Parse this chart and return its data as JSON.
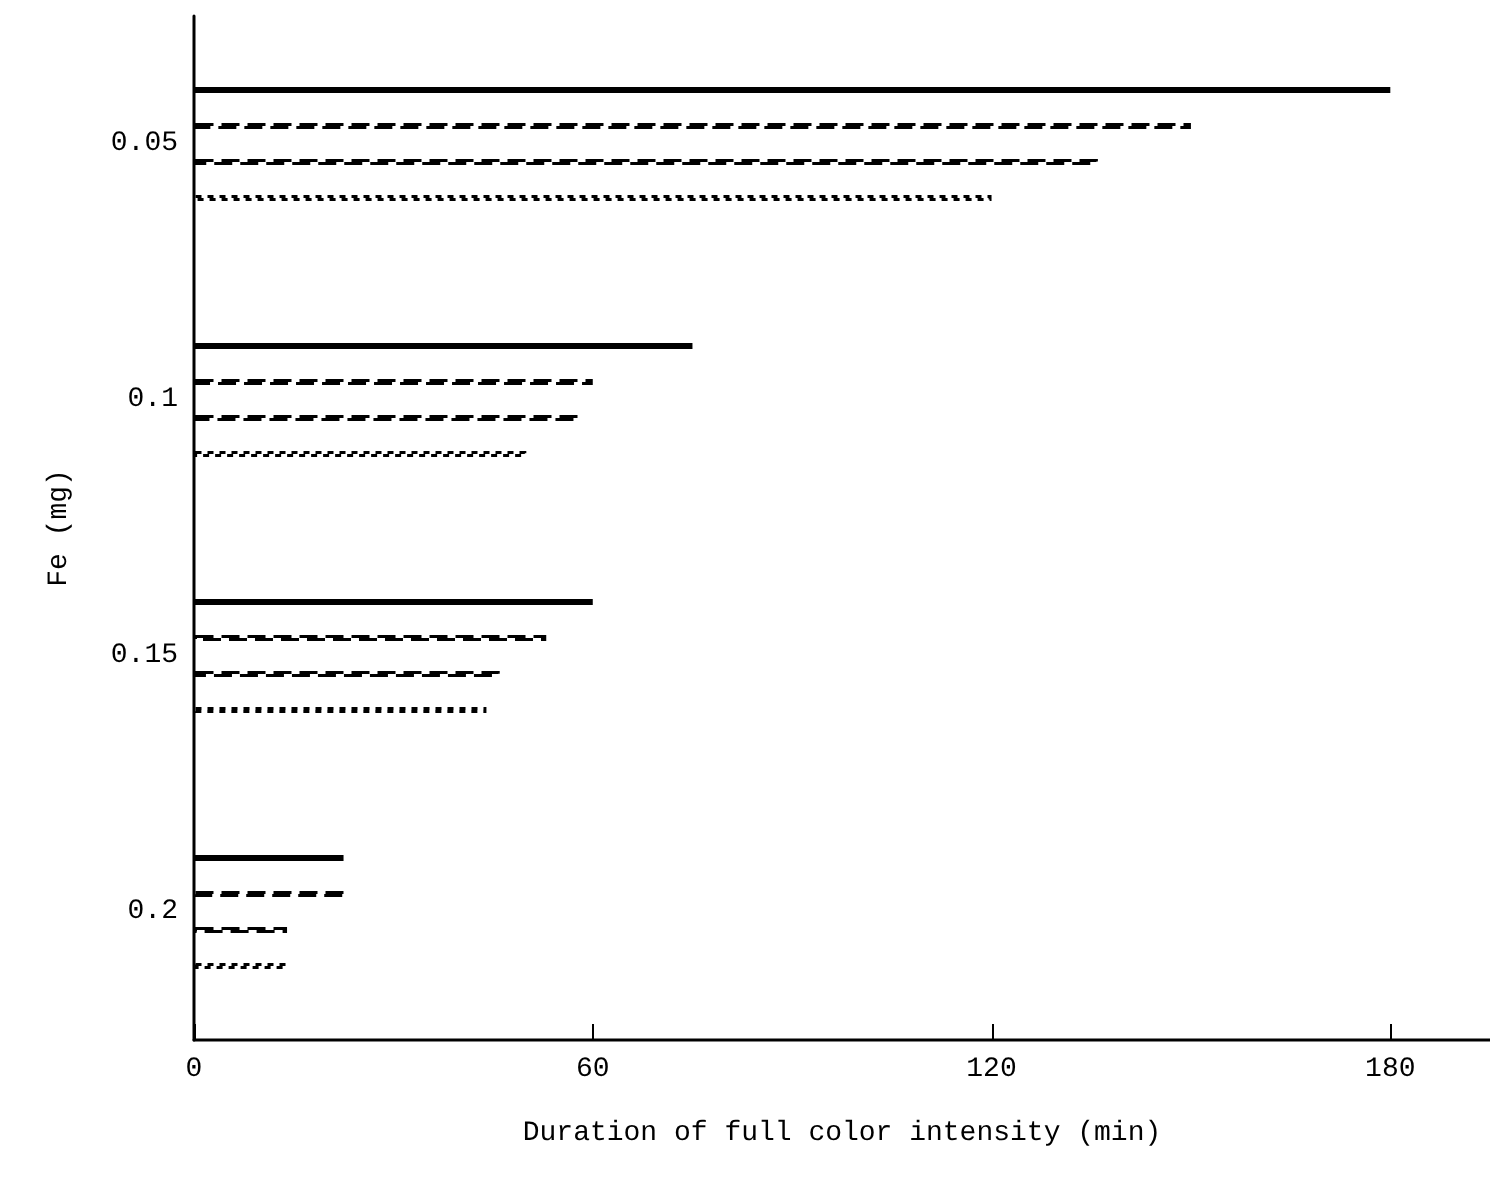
{
  "chart_data": {
    "type": "bar",
    "orientation": "horizontal",
    "xlabel": "Duration of full color intensity (min)",
    "ylabel": "Fe (mg)",
    "categories": [
      "0.05",
      "0.1",
      "0.15",
      "0.2"
    ],
    "series": [
      {
        "color": "#000000",
        "line_style": "solid",
        "values": [
          180,
          75,
          60,
          22.5
        ]
      },
      {
        "color": "#000000",
        "line_style": "dashed",
        "values": [
          150,
          60,
          53,
          23
        ]
      },
      {
        "color": "#000000",
        "line_style": "dashed",
        "values": [
          136,
          58,
          46,
          14
        ]
      },
      {
        "color": "#000000",
        "line_style": "dotted",
        "values": [
          120,
          50,
          44,
          14
        ]
      }
    ],
    "xlim": [
      0,
      195
    ],
    "xticks": [
      0,
      60,
      120,
      180
    ],
    "grid": false
  }
}
